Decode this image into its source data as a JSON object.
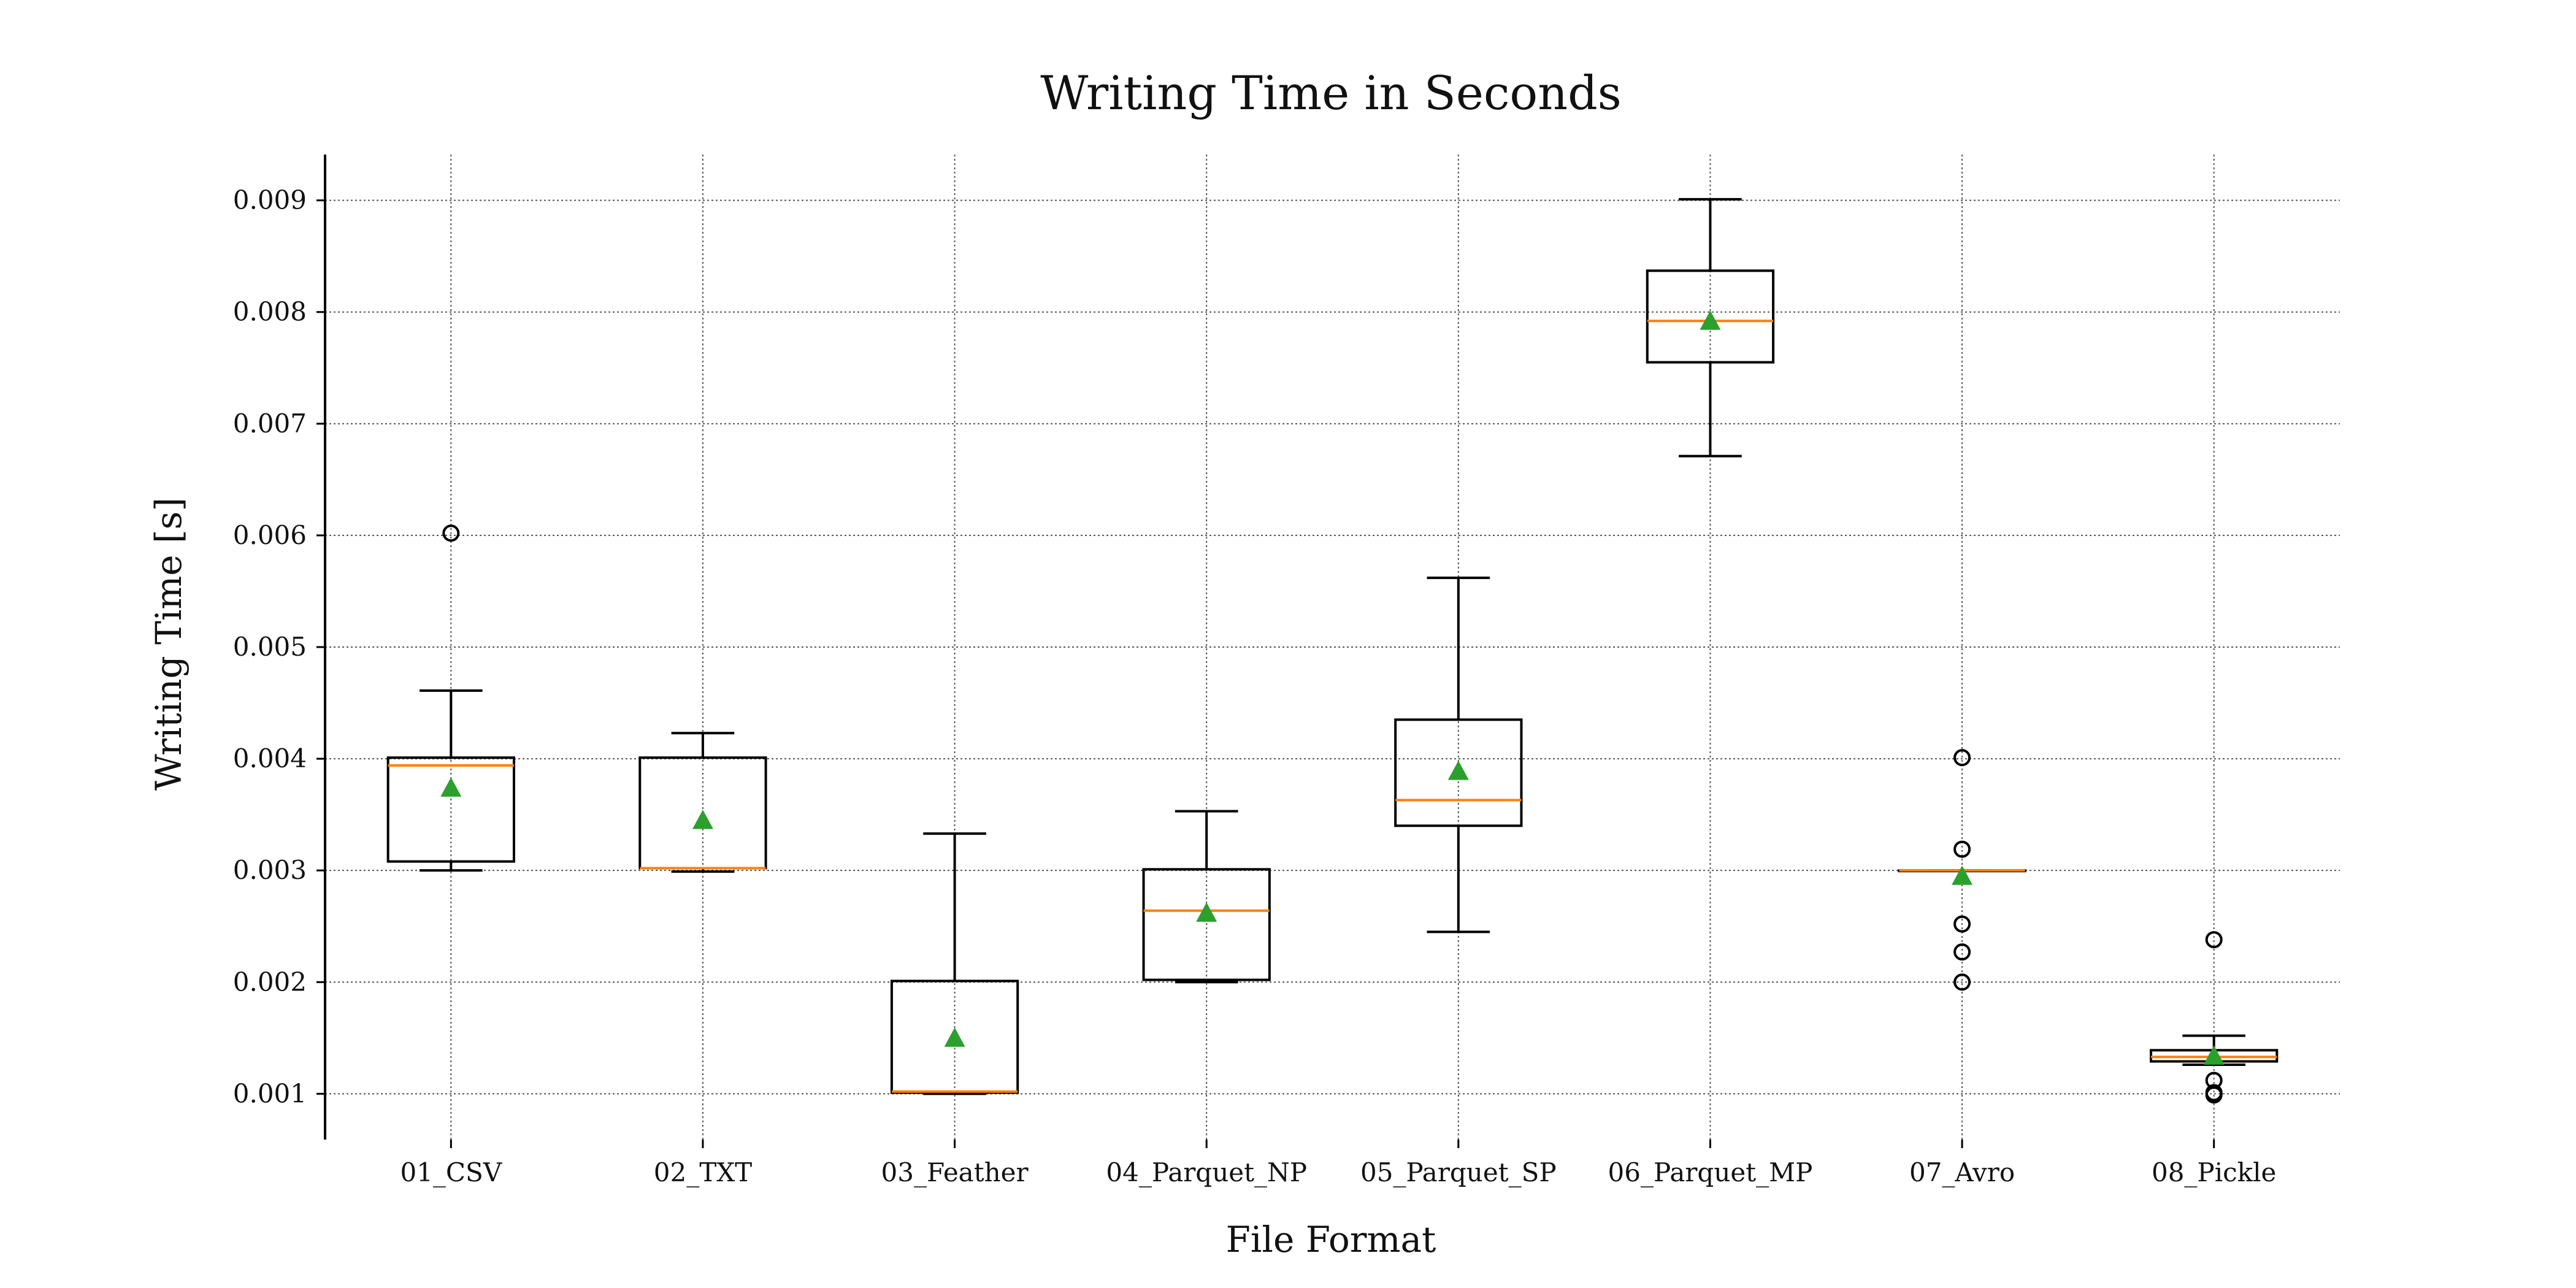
{
  "chart_data": {
    "type": "box",
    "title": "Writing Time in Seconds",
    "xlabel": "File Format",
    "ylabel": "Writing Time [s]",
    "ylim": [
      0.00059,
      0.00941
    ],
    "yticks": [
      0.001,
      0.002,
      0.003,
      0.004,
      0.005,
      0.006,
      0.007,
      0.008,
      0.009
    ],
    "ytick_labels": [
      "0.001",
      "0.002",
      "0.003",
      "0.004",
      "0.005",
      "0.006",
      "0.007",
      "0.008",
      "0.009"
    ],
    "grid": true,
    "colors": {
      "box": "#000000",
      "median": "#ff7f0e",
      "mean": "#2ca02c",
      "grid": "#555555"
    },
    "categories": [
      "01_CSV",
      "02_TXT",
      "03_Feather",
      "04_Parquet_NP",
      "05_Parquet_SP",
      "06_Parquet_MP",
      "07_Avro",
      "08_Pickle"
    ],
    "boxes": [
      {
        "label": "01_CSV",
        "whislo": 0.003,
        "q1": 0.00308,
        "med": 0.00394,
        "q3": 0.00401,
        "whishi": 0.00461,
        "mean": 0.00374,
        "fliers": [
          0.00602
        ]
      },
      {
        "label": "02_TXT",
        "whislo": 0.00299,
        "q1": 0.00302,
        "med": 0.00302,
        "q3": 0.00401,
        "whishi": 0.00423,
        "mean": 0.00345,
        "fliers": []
      },
      {
        "label": "03_Feather",
        "whislo": 0.001,
        "q1": 0.00101,
        "med": 0.00102,
        "q3": 0.00201,
        "whishi": 0.00333,
        "mean": 0.0015,
        "fliers": []
      },
      {
        "label": "04_Parquet_NP",
        "whislo": 0.002,
        "q1": 0.00202,
        "med": 0.00264,
        "q3": 0.00301,
        "whishi": 0.00353,
        "mean": 0.00262,
        "fliers": []
      },
      {
        "label": "05_Parquet_SP",
        "whislo": 0.00245,
        "q1": 0.0034,
        "med": 0.00363,
        "q3": 0.00435,
        "whishi": 0.00562,
        "mean": 0.00389,
        "fliers": []
      },
      {
        "label": "06_Parquet_MP",
        "whislo": 0.00671,
        "q1": 0.00755,
        "med": 0.00792,
        "q3": 0.00837,
        "whishi": 0.00901,
        "mean": 0.00792,
        "fliers": []
      },
      {
        "label": "07_Avro",
        "whislo": 0.003,
        "q1": 0.003,
        "med": 0.003,
        "q3": 0.003,
        "whishi": 0.003,
        "mean": 0.00295,
        "fliers": [
          0.00401,
          0.00319,
          0.00252,
          0.00227,
          0.002
        ]
      },
      {
        "label": "08_Pickle",
        "whislo": 0.00126,
        "q1": 0.00129,
        "med": 0.00133,
        "q3": 0.00139,
        "whishi": 0.00152,
        "mean": 0.00134,
        "fliers": [
          0.00238,
          0.00112,
          0.00101,
          0.00099
        ]
      }
    ]
  }
}
